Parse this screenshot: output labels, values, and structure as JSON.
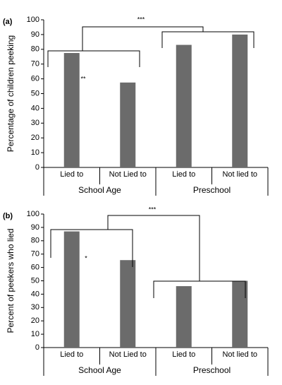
{
  "chart_data": [
    {
      "type": "bar",
      "panel_label": "(a)",
      "y_label": "Percentage of children peeking",
      "categories": [
        "Lied to",
        "Not Lied to",
        "Lied to",
        "Not lied to"
      ],
      "groups": [
        "School Age",
        "Preschool"
      ],
      "values": [
        77.5,
        57.5,
        83,
        90
      ],
      "color": "#6b6b6b",
      "ylim": [
        0,
        100
      ],
      "yticks": [
        0,
        10,
        20,
        30,
        40,
        50,
        60,
        70,
        80,
        90,
        100
      ],
      "annotations": [
        "***",
        "**"
      ]
    },
    {
      "type": "bar",
      "panel_label": "(b)",
      "y_label": "Percent of peekers who lied",
      "categories": [
        "Lied to",
        "Not Lied to",
        "Lied to",
        "Not lied to"
      ],
      "groups": [
        "School Age",
        "Preschool"
      ],
      "values": [
        87,
        65.5,
        46,
        50
      ],
      "color": "#6b6b6b",
      "ylim": [
        0,
        100
      ],
      "yticks": [
        0,
        10,
        20,
        30,
        40,
        50,
        60,
        70,
        80,
        90,
        100
      ],
      "annotations": [
        "***",
        "*"
      ]
    }
  ]
}
